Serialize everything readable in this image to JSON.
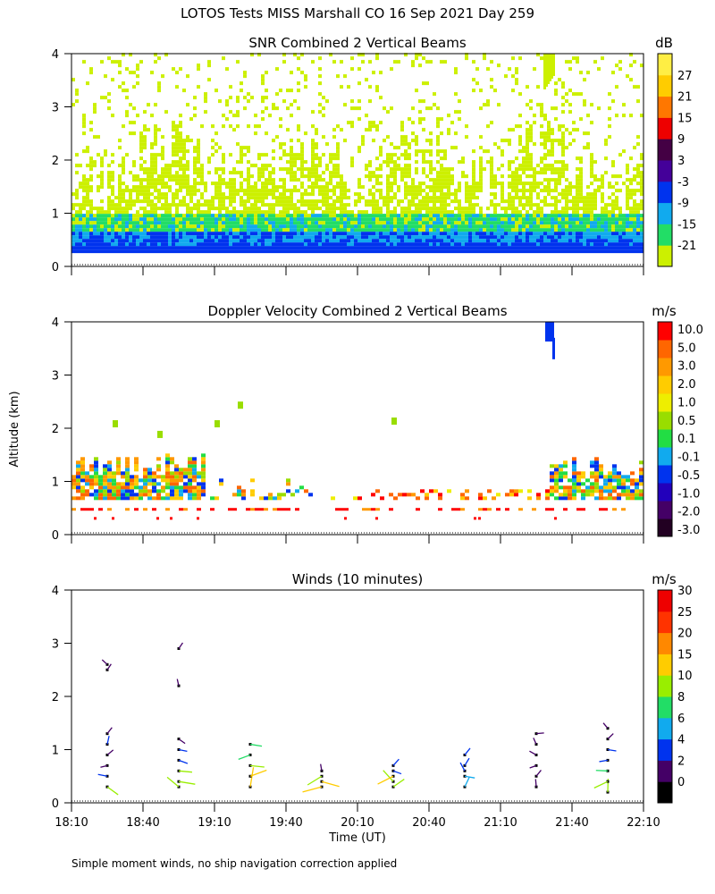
{
  "chart_data": {
    "type": "heatmap",
    "title": "LOTOS Tests MISS Marshall CO  16 Sep 2021 Day 259",
    "ylabel": "Altitude (km)",
    "xlabel": "Time (UT)",
    "footnote": "Simple moment winds, no ship navigation correction applied",
    "x_ticks": [
      "18:10",
      "18:40",
      "19:10",
      "19:40",
      "20:10",
      "20:40",
      "21:10",
      "21:40",
      "22:10"
    ],
    "x_range_minutes": [
      0,
      240
    ],
    "y_ticks": [
      "0",
      "1",
      "2",
      "3",
      "4"
    ],
    "y_range_km": [
      0,
      4
    ],
    "panels": [
      {
        "id": "snr",
        "title": "SNR Combined 2 Vertical Beams",
        "unit": "dB",
        "colorbar_labels": [
          "-21",
          "-15",
          "-9",
          "-3",
          "3",
          "9",
          "15",
          "21",
          "27"
        ],
        "colorbar_colors": [
          "#ccf000",
          "#22dd66",
          "#11aaee",
          "#0033ee",
          "#440099",
          "#440044",
          "#ee0000",
          "#ff7700",
          "#ffcc00",
          "#ffee44"
        ]
      },
      {
        "id": "doppler",
        "title": "Doppler Velocity Combined 2 Vertical Beams",
        "unit": "m/s",
        "colorbar_labels": [
          "10.0",
          "5.0",
          "3.0",
          "2.0",
          "1.0",
          "0.5",
          "0.1",
          "-0.1",
          "-0.5",
          "-1.0",
          "-2.0",
          "-3.0"
        ],
        "colorbar_colors": [
          "#220022",
          "#440066",
          "#2200bb",
          "#0033ee",
          "#11aaee",
          "#22dd44",
          "#99dd00",
          "#eeee00",
          "#ffcc00",
          "#ff9900",
          "#ff6600",
          "#ff0000"
        ]
      },
      {
        "id": "winds",
        "title": "Winds (10 minutes)",
        "unit": "m/s",
        "colorbar_labels": [
          "0",
          "2",
          "4",
          "6",
          "8",
          "10",
          "15",
          "20",
          "25",
          "30"
        ],
        "colorbar_colors": [
          "#000000",
          "#440066",
          "#0033ee",
          "#11aaee",
          "#22dd66",
          "#99ee00",
          "#ffcc00",
          "#ff8800",
          "#ff3300",
          "#ee0000"
        ]
      }
    ],
    "wind_profiles": [
      {
        "time_min": 15,
        "alt_km": [
          0.3,
          0.5,
          0.7,
          0.9,
          1.1,
          1.3,
          2.5,
          2.6
        ],
        "speed_ms": [
          10,
          5,
          2,
          3,
          4,
          3,
          2,
          2
        ]
      },
      {
        "time_min": 45,
        "alt_km": [
          0.3,
          0.4,
          0.6,
          0.8,
          1.0,
          1.2,
          2.2,
          2.9
        ],
        "speed_ms": [
          12,
          14,
          10,
          5,
          4,
          3,
          2,
          2
        ]
      },
      {
        "time_min": 75,
        "alt_km": [
          0.3,
          0.5,
          0.7,
          0.9,
          1.1
        ],
        "speed_ms": [
          18,
          15,
          11,
          9,
          8
        ]
      },
      {
        "time_min": 105,
        "alt_km": [
          0.3,
          0.4,
          0.5,
          0.6
        ],
        "speed_ms": [
          18,
          16,
          14,
          2
        ]
      },
      {
        "time_min": 135,
        "alt_km": [
          0.3,
          0.4,
          0.5,
          0.6,
          0.7
        ],
        "speed_ms": [
          10,
          12,
          15,
          4,
          4
        ]
      },
      {
        "time_min": 165,
        "alt_km": [
          0.3,
          0.5,
          0.6,
          0.7,
          0.9
        ],
        "speed_ms": [
          7,
          6,
          5,
          4,
          4
        ]
      },
      {
        "time_min": 195,
        "alt_km": [
          0.3,
          0.5,
          0.7,
          0.9,
          1.1,
          1.3
        ],
        "speed_ms": [
          3,
          3,
          2,
          3,
          2,
          3
        ]
      },
      {
        "time_min": 225,
        "alt_km": [
          0.2,
          0.4,
          0.6,
          0.8,
          1.0,
          1.2,
          1.4
        ],
        "speed_ms": [
          10,
          12,
          8,
          4,
          4,
          3,
          2
        ]
      }
    ]
  }
}
